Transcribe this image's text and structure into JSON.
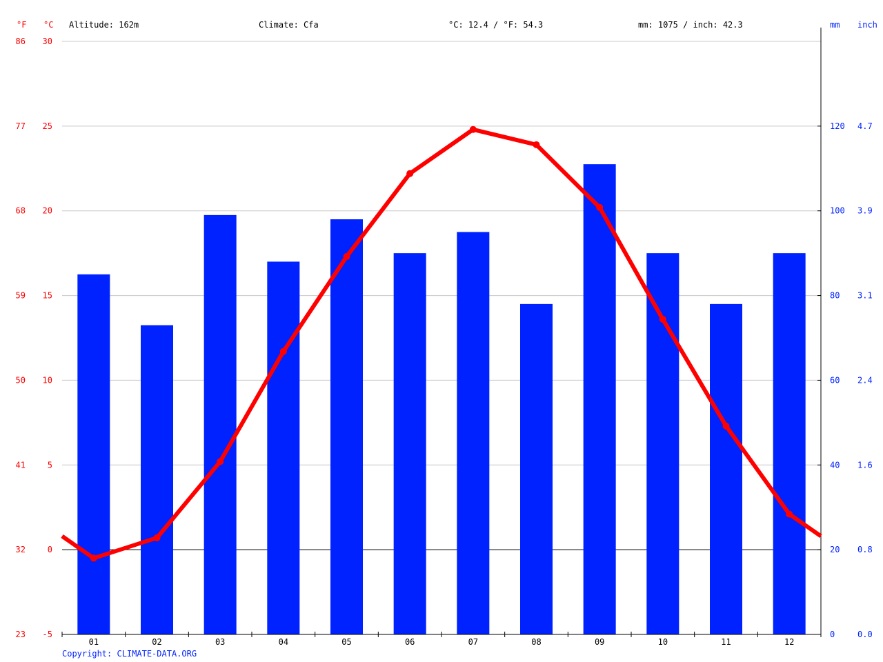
{
  "header": {
    "f_unit": "°F",
    "c_unit": "°C",
    "altitude": "Altitude: 162m",
    "climate": "Climate: Cfa",
    "avg_temp": "°C: 12.4 / °F: 54.3",
    "precip_total": "mm: 1075 / inch: 42.3",
    "mm_unit": "mm",
    "inch_unit": "inch"
  },
  "footer": {
    "copyright": "Copyright: CLIMATE-DATA.ORG"
  },
  "colors": {
    "temperature": "#ff0000",
    "precipitation": "#0022ff",
    "grid": "#c8c8c8",
    "zero_line": "#000000"
  },
  "chart_data": {
    "type": "bar",
    "categories": [
      "01",
      "02",
      "03",
      "04",
      "05",
      "06",
      "07",
      "08",
      "09",
      "10",
      "11",
      "12"
    ],
    "series": [
      {
        "type": "bar",
        "axis": "right-mm",
        "values": [
          85,
          73,
          99,
          88,
          98,
          90,
          95,
          78,
          111,
          90,
          78,
          90
        ]
      },
      {
        "type": "line",
        "axis": "left-celsius",
        "values": [
          -0.5,
          0.7,
          5.2,
          11.7,
          17.3,
          22.2,
          24.8,
          23.9,
          20.2,
          13.6,
          7.3,
          2.1
        ],
        "edge_values": [
          0.8,
          0.8
        ]
      }
    ],
    "y_left_c": {
      "range": [
        -5,
        30
      ],
      "ticks": [
        "-5",
        "0",
        "5",
        "10",
        "15",
        "20",
        "25",
        "30"
      ]
    },
    "y_left_f": {
      "ticks": [
        "23",
        "32",
        "41",
        "50",
        "59",
        "68",
        "77",
        "86"
      ]
    },
    "y_right_mm": {
      "range": [
        0,
        140
      ],
      "ticks": [
        "0",
        "20",
        "40",
        "60",
        "80",
        "100",
        "120"
      ]
    },
    "y_right_inch": {
      "ticks": [
        "0.0",
        "0.8",
        "1.6",
        "2.4",
        "3.1",
        "3.9",
        "4.7"
      ]
    },
    "grid": true
  }
}
